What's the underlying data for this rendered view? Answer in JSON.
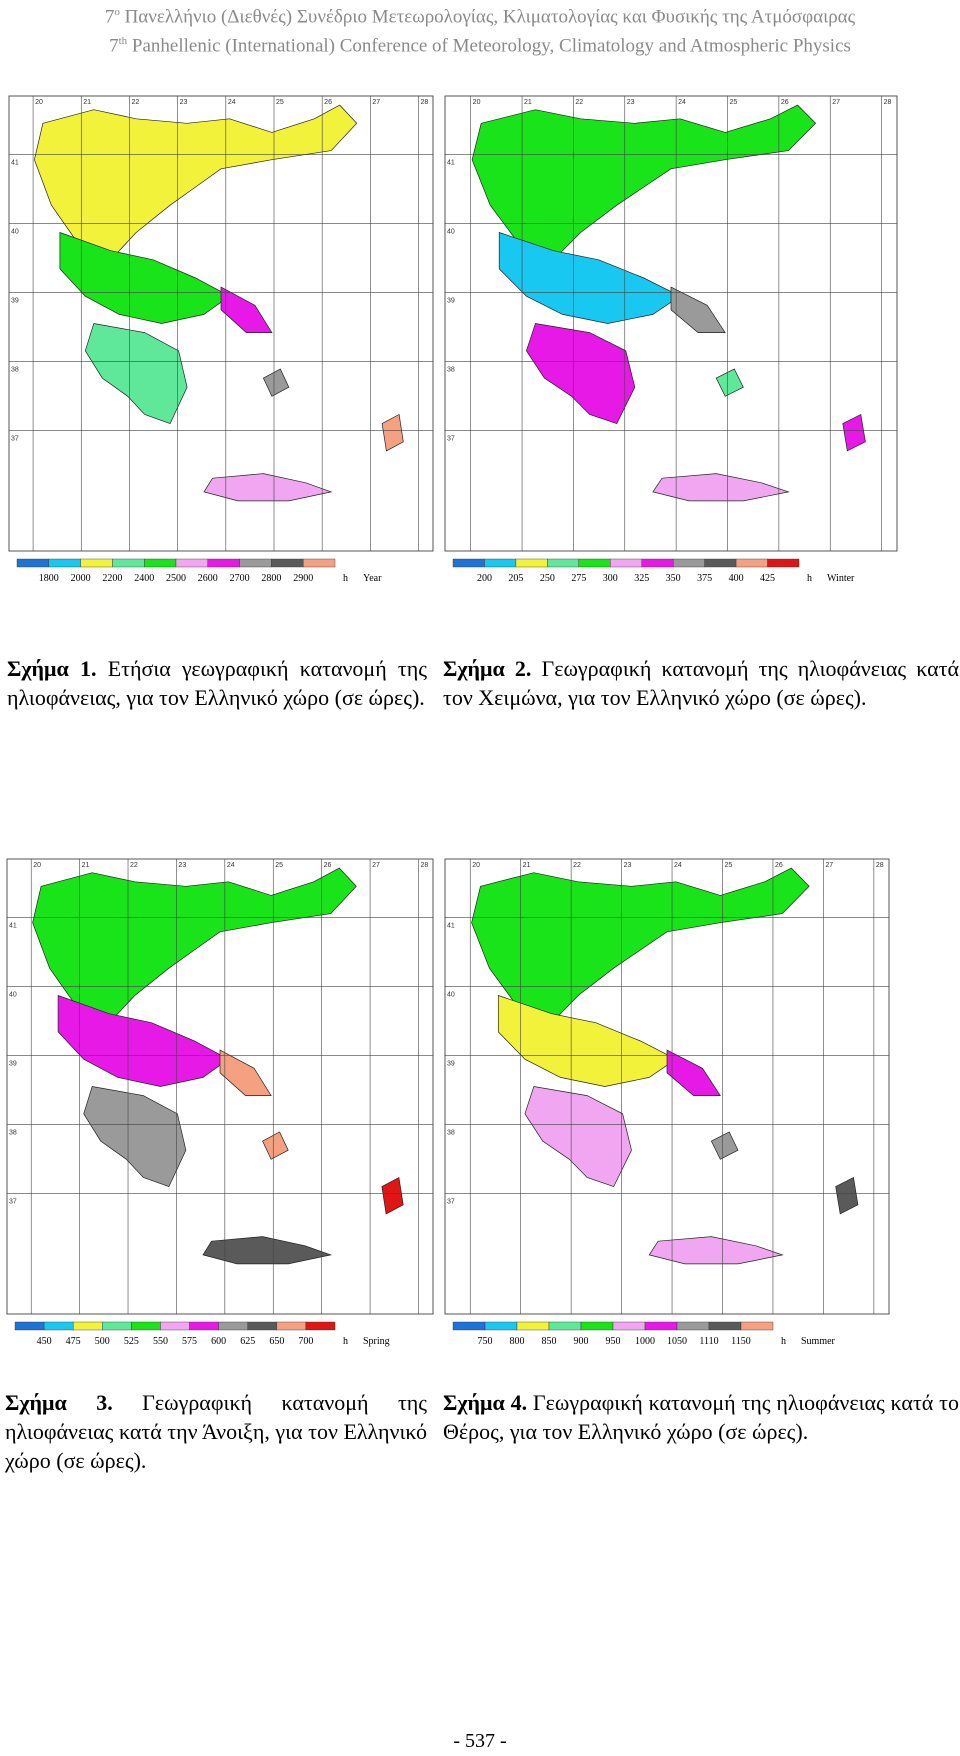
{
  "header": {
    "line1": {
      "ordinal": "7",
      "sup": "ο",
      "text": " Πανελλήνιο (Διεθνές) Συνέδριο Μετεωρολογίας, Κλιματολογίας και Φυσικής της Ατμόσφαιρας"
    },
    "line2": {
      "ordinal": "7",
      "sup": "th",
      "text": " Panhellenic (International) Conference of Meteorology, Climatology and Atmospheric Physics"
    }
  },
  "map_axes": {
    "longitudes": [
      "20",
      "21",
      "22",
      "23",
      "24",
      "25",
      "26",
      "27",
      "28"
    ],
    "latitudes": [
      "41",
      "40",
      "39",
      "38",
      "37"
    ]
  },
  "figures": [
    {
      "id": "fig1",
      "season": "Year",
      "unit": "h",
      "legend_values": [
        "1800",
        "2000",
        "2200",
        "2400",
        "2500",
        "2600",
        "2700",
        "2800",
        "2900"
      ],
      "legend_colors": [
        "#1e73d6",
        "#18c8f0",
        "#f2f23a",
        "#5fe89a",
        "#19e319",
        "#f0a6f0",
        "#e619e6",
        "#9a9a9a",
        "#5a5a5a",
        "#f5a080"
      ],
      "caption_label": "Σχήμα 1.",
      "caption_text": " Ετήσια γεωγραφική κατανομή της ηλιοφάνειας, για τον Ελληνικό χώρο (σε ώρες).",
      "fills": [
        "#f2f23a",
        "#19e319",
        "#5fe89a",
        "#e619e6",
        "#f0a6f0",
        "#9a9a9a",
        "#f5a080"
      ]
    },
    {
      "id": "fig2",
      "season": "Winter",
      "unit": "h",
      "legend_values": [
        "200",
        "205",
        "250",
        "275",
        "300",
        "325",
        "350",
        "375",
        "400",
        "425"
      ],
      "legend_colors": [
        "#1e73d6",
        "#18c8f0",
        "#f2f23a",
        "#5fe89a",
        "#19e319",
        "#f0a6f0",
        "#e619e6",
        "#9a9a9a",
        "#5a5a5a",
        "#f5a080",
        "#e01515"
      ],
      "caption_label": "Σχήμα 2.",
      "caption_text": " Γεωγραφική κατανομή της ηλιοφάνειας κατά τον Χειμώνα, για τον Ελληνικό χώρο (σε ώρες).",
      "fills": [
        "#19e319",
        "#18c8f0",
        "#e619e6",
        "#9a9a9a",
        "#f0a6f0",
        "#5fe89a",
        "#e619e6"
      ]
    },
    {
      "id": "fig3",
      "season": "Spring",
      "unit": "h",
      "legend_values": [
        "450",
        "475",
        "500",
        "525",
        "550",
        "575",
        "600",
        "625",
        "650",
        "700"
      ],
      "legend_colors": [
        "#1e73d6",
        "#18c8f0",
        "#f2f23a",
        "#5fe89a",
        "#19e319",
        "#f0a6f0",
        "#e619e6",
        "#9a9a9a",
        "#5a5a5a",
        "#f5a080",
        "#e01515"
      ],
      "caption_label": "Σχήμα 3.",
      "caption_text": " Γεωγραφική κατανομή της ηλιοφάνειας κατά την Άνοιξη, για τον Ελληνικό χώρο (σε ώρες).",
      "fills": [
        "#19e319",
        "#e619e6",
        "#9a9a9a",
        "#f5a080",
        "#5a5a5a",
        "#f5a080",
        "#e01515"
      ]
    },
    {
      "id": "fig4",
      "season": "Summer",
      "unit": "h",
      "legend_values": [
        "750",
        "800",
        "850",
        "900",
        "950",
        "1000",
        "1050",
        "1110",
        "1150"
      ],
      "legend_colors": [
        "#1e73d6",
        "#18c8f0",
        "#f2f23a",
        "#5fe89a",
        "#19e319",
        "#f0a6f0",
        "#e619e6",
        "#9a9a9a",
        "#5a5a5a",
        "#f5a080"
      ],
      "caption_label": "Σχήμα 4.",
      "caption_text": " Γεωγραφική κατανομή της ηλιοφάνειας κατά το Θέρος, για τον Ελληνικό χώρο (σε ώρες).",
      "fills": [
        "#19e319",
        "#f2f23a",
        "#f0a6f0",
        "#e619e6",
        "#f0a6f0",
        "#9a9a9a",
        "#5a5a5a"
      ]
    }
  ],
  "page_number": "- 537 -"
}
